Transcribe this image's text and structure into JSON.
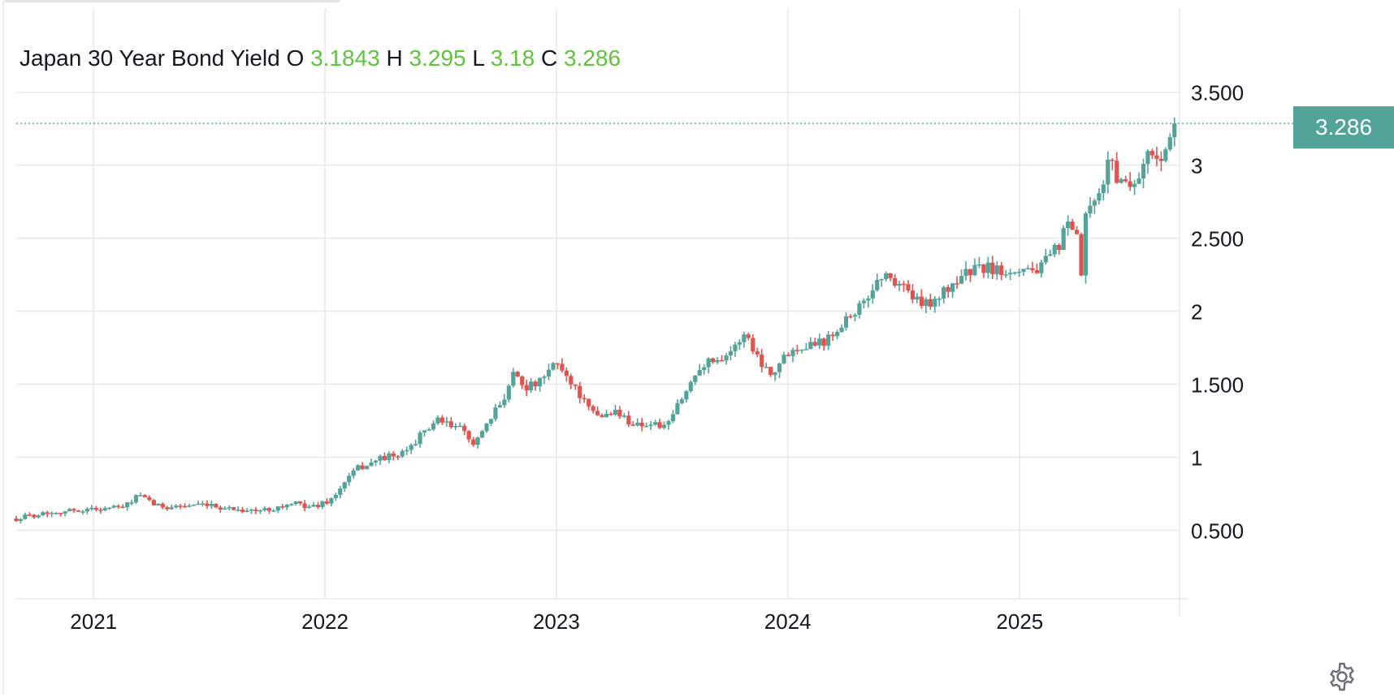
{
  "chart_data": {
    "type": "candlestick",
    "title": "Japan 30 Year Bond Yield",
    "ohlc": {
      "o_label": "O",
      "o": "3.1843",
      "h_label": "H",
      "h": "3.295",
      "l_label": "L",
      "l": "3.18",
      "c_label": "C",
      "c": "3.286"
    },
    "last_price": "3.286",
    "y_ticks": [
      "3.500",
      "3",
      "2.500",
      "2",
      "1.500",
      "1",
      "0.500"
    ],
    "y_tick_values": [
      3.5,
      3.0,
      2.5,
      2.0,
      1.5,
      1.0,
      0.5
    ],
    "x_ticks": [
      "2021",
      "2022",
      "2023",
      "2024",
      "2025"
    ],
    "x_tick_values": [
      "2021-01-01",
      "2022-01-01",
      "2023-01-01",
      "2024-01-01",
      "2025-01-01"
    ],
    "x_range": [
      "2020-09-01",
      "2025-09-10"
    ],
    "y_range": [
      0.03,
      4.02
    ],
    "grid": true,
    "up_color": "#53a39b",
    "down_color": "#e0534f",
    "price_line_color": "#53a39b",
    "price_curve_dates": [
      "2020-09-01",
      "2020-10-15",
      "2020-12-15",
      "2021-02-20",
      "2021-03-10",
      "2021-04-15",
      "2021-06-01",
      "2021-07-15",
      "2021-09-15",
      "2021-11-15",
      "2021-12-15",
      "2022-01-15",
      "2022-02-01",
      "2022-02-20",
      "2022-03-15",
      "2022-04-01",
      "2022-05-01",
      "2022-06-01",
      "2022-06-25",
      "2022-07-15",
      "2022-08-01",
      "2022-08-20",
      "2022-09-05",
      "2022-09-25",
      "2022-10-15",
      "2022-10-25",
      "2022-11-15",
      "2022-12-10",
      "2022-12-31",
      "2023-01-10",
      "2023-02-01",
      "2023-02-25",
      "2023-03-15",
      "2023-04-01",
      "2023-05-01",
      "2023-06-10",
      "2023-06-25",
      "2023-07-10",
      "2023-07-25",
      "2023-08-15",
      "2023-09-15",
      "2023-10-10",
      "2023-10-25",
      "2023-11-10",
      "2023-11-25",
      "2023-12-10",
      "2024-01-01",
      "2024-02-01",
      "2024-03-01",
      "2024-04-01",
      "2024-05-01",
      "2024-05-25",
      "2024-06-10",
      "2024-07-01",
      "2024-07-25",
      "2024-08-05",
      "2024-08-20",
      "2024-09-10",
      "2024-10-01",
      "2024-11-01",
      "2024-12-01",
      "2025-01-10",
      "2025-02-01",
      "2025-02-15",
      "2025-03-01",
      "2025-03-15",
      "2025-04-01",
      "2025-04-08",
      "2025-04-15",
      "2025-05-01",
      "2025-05-15",
      "2025-05-25",
      "2025-06-05",
      "2025-06-20",
      "2025-07-01",
      "2025-07-20",
      "2025-08-01",
      "2025-08-20",
      "2025-09-01",
      "2025-09-08"
    ],
    "price_curve_values": [
      0.58,
      0.62,
      0.64,
      0.66,
      0.74,
      0.66,
      0.67,
      0.66,
      0.63,
      0.68,
      0.66,
      0.72,
      0.83,
      0.92,
      0.96,
      1.0,
      1.01,
      1.15,
      1.25,
      1.22,
      1.2,
      1.1,
      1.15,
      1.3,
      1.45,
      1.59,
      1.48,
      1.52,
      1.66,
      1.6,
      1.47,
      1.3,
      1.28,
      1.32,
      1.23,
      1.22,
      1.2,
      1.35,
      1.45,
      1.63,
      1.68,
      1.75,
      1.86,
      1.72,
      1.62,
      1.58,
      1.72,
      1.78,
      1.8,
      1.95,
      2.05,
      2.25,
      2.22,
      2.18,
      2.05,
      2.05,
      2.08,
      2.15,
      2.25,
      2.3,
      2.28,
      2.3,
      2.28,
      2.36,
      2.43,
      2.58,
      2.5,
      2.25,
      2.65,
      2.73,
      2.92,
      3.08,
      2.88,
      2.9,
      2.86,
      3.08,
      3.05,
      3.1,
      3.2,
      3.286
    ]
  },
  "toolbar": {
    "settings_icon": "gear-icon"
  }
}
